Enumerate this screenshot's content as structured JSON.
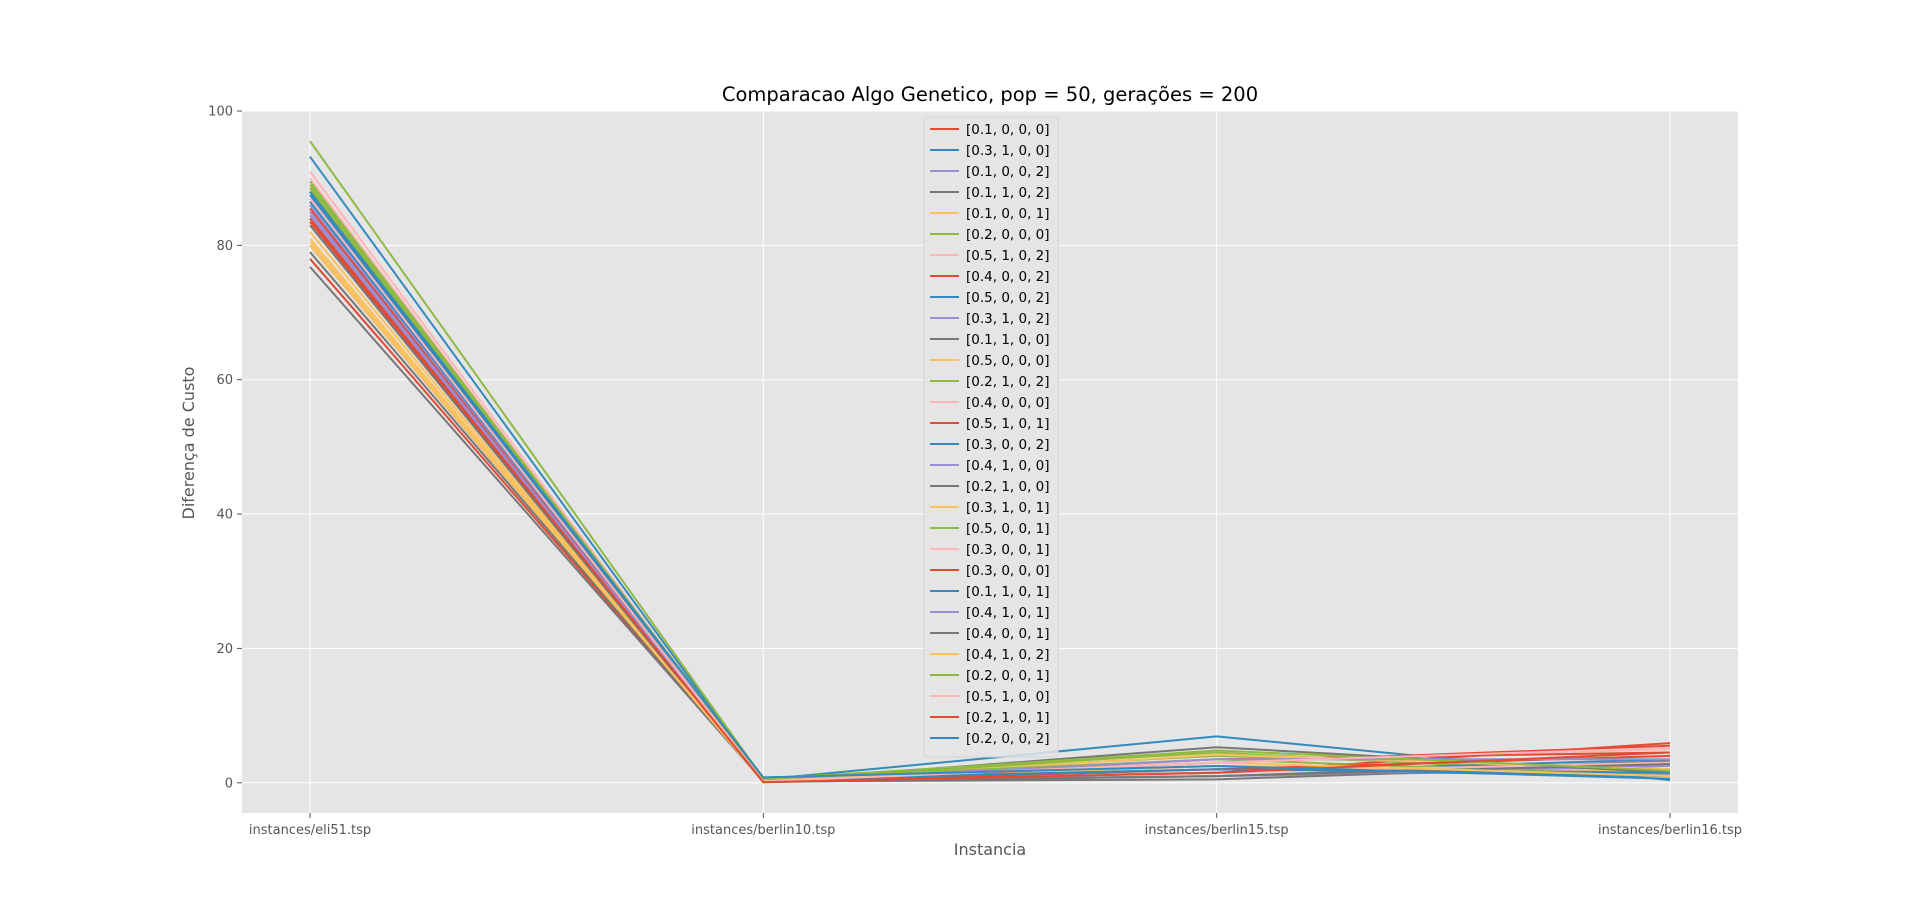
{
  "chart_data": {
    "type": "line",
    "title": "Comparacao Algo Genetico, pop = 50, gerações = 200",
    "xlabel": "Instancia",
    "ylabel": "Diferença de Custo",
    "categories": [
      "instances/eli51.tsp",
      "instances/berlin10.tsp",
      "instances/berlin15.tsp",
      "instances/berlin16.tsp"
    ],
    "ylim": [
      -4.5,
      100
    ],
    "yticks": [
      0,
      20,
      40,
      60,
      80,
      100
    ],
    "grid": true,
    "legend_position": "top-center",
    "colors": [
      "#E24A33",
      "#348ABD",
      "#988ED5",
      "#777777",
      "#FBC15E",
      "#8EBA42",
      "#FFB5B8"
    ],
    "series": [
      {
        "name": "[0.1, 0, 0, 0]",
        "values": [
          78.0,
          0.2,
          1.5,
          5.9
        ]
      },
      {
        "name": "[0.3, 1, 0, 0]",
        "values": [
          93.2,
          0.5,
          6.9,
          0.4
        ]
      },
      {
        "name": "[0.1, 0, 0, 2]",
        "values": [
          85.0,
          0.3,
          2.5,
          1.2
        ]
      },
      {
        "name": "[0.1, 1, 0, 2]",
        "values": [
          80.0,
          0.2,
          1.0,
          3.2
        ]
      },
      {
        "name": "[0.1, 0, 0, 1]",
        "values": [
          82.0,
          0.1,
          2.0,
          1.5
        ]
      },
      {
        "name": "[0.2, 0, 0, 0]",
        "values": [
          95.5,
          0.6,
          4.5,
          1.0
        ]
      },
      {
        "name": "[0.5, 1, 0, 2]",
        "values": [
          89.0,
          0.3,
          3.0,
          5.0
        ]
      },
      {
        "name": "[0.4, 0, 0, 2]",
        "values": [
          84.0,
          0.1,
          3.5,
          4.5
        ]
      },
      {
        "name": "[0.5, 0, 0, 2]",
        "values": [
          88.0,
          0.4,
          1.5,
          3.5
        ]
      },
      {
        "name": "[0.3, 1, 0, 2]",
        "values": [
          86.0,
          0.2,
          1.0,
          2.0
        ]
      },
      {
        "name": "[0.1, 1, 0, 0]",
        "values": [
          76.8,
          0.2,
          0.5,
          2.8
        ]
      },
      {
        "name": "[0.5, 0, 0, 0]",
        "values": [
          81.0,
          0.3,
          2.5,
          1.8
        ]
      },
      {
        "name": "[0.2, 1, 0, 2]",
        "values": [
          89.0,
          0.7,
          4.0,
          2.0
        ]
      },
      {
        "name": "[0.4, 0, 0, 0]",
        "values": [
          91.0,
          0.2,
          2.0,
          4.0
        ]
      },
      {
        "name": "[0.5, 1, 0, 1]",
        "values": [
          85.5,
          0.1,
          3.0,
          5.5
        ]
      },
      {
        "name": "[0.3, 0, 0, 2]",
        "values": [
          87.5,
          0.5,
          2.0,
          1.0
        ]
      },
      {
        "name": "[0.4, 1, 0, 0]",
        "values": [
          84.5,
          0.3,
          1.0,
          2.5
        ]
      },
      {
        "name": "[0.2, 1, 0, 0]",
        "values": [
          79.0,
          0.2,
          5.3,
          1.5
        ]
      },
      {
        "name": "[0.3, 1, 0, 1]",
        "values": [
          80.5,
          0.1,
          4.2,
          2.0
        ]
      },
      {
        "name": "[0.5, 0, 0, 1]",
        "values": [
          88.5,
          0.6,
          3.5,
          1.0
        ]
      },
      {
        "name": "[0.3, 0, 0, 1]",
        "values": [
          90.0,
          0.2,
          1.5,
          3.0
        ]
      },
      {
        "name": "[0.3, 0, 0, 0]",
        "values": [
          83.5,
          0.1,
          2.0,
          4.0
        ]
      },
      {
        "name": "[0.1, 1, 0, 1]",
        "values": [
          86.5,
          0.4,
          2.0,
          1.5
        ]
      },
      {
        "name": "[0.4, 1, 0, 1]",
        "values": [
          85.0,
          0.2,
          3.5,
          3.5
        ]
      },
      {
        "name": "[0.4, 0, 0, 1]",
        "values": [
          83.0,
          0.1,
          1.0,
          2.8
        ]
      },
      {
        "name": "[0.4, 1, 0, 2]",
        "values": [
          80.0,
          0.3,
          3.0,
          1.0
        ]
      },
      {
        "name": "[0.2, 0, 0, 1]",
        "values": [
          89.5,
          0.5,
          4.8,
          1.8
        ]
      },
      {
        "name": "[0.5, 1, 0, 0]",
        "values": [
          87.0,
          0.2,
          3.0,
          5.2
        ]
      },
      {
        "name": "[0.2, 1, 0, 1]",
        "values": [
          84.0,
          0.1,
          1.5,
          4.5
        ]
      },
      {
        "name": "[0.2, 0, 0, 2]",
        "values": [
          88.0,
          0.8,
          2.5,
          0.6
        ]
      }
    ]
  }
}
